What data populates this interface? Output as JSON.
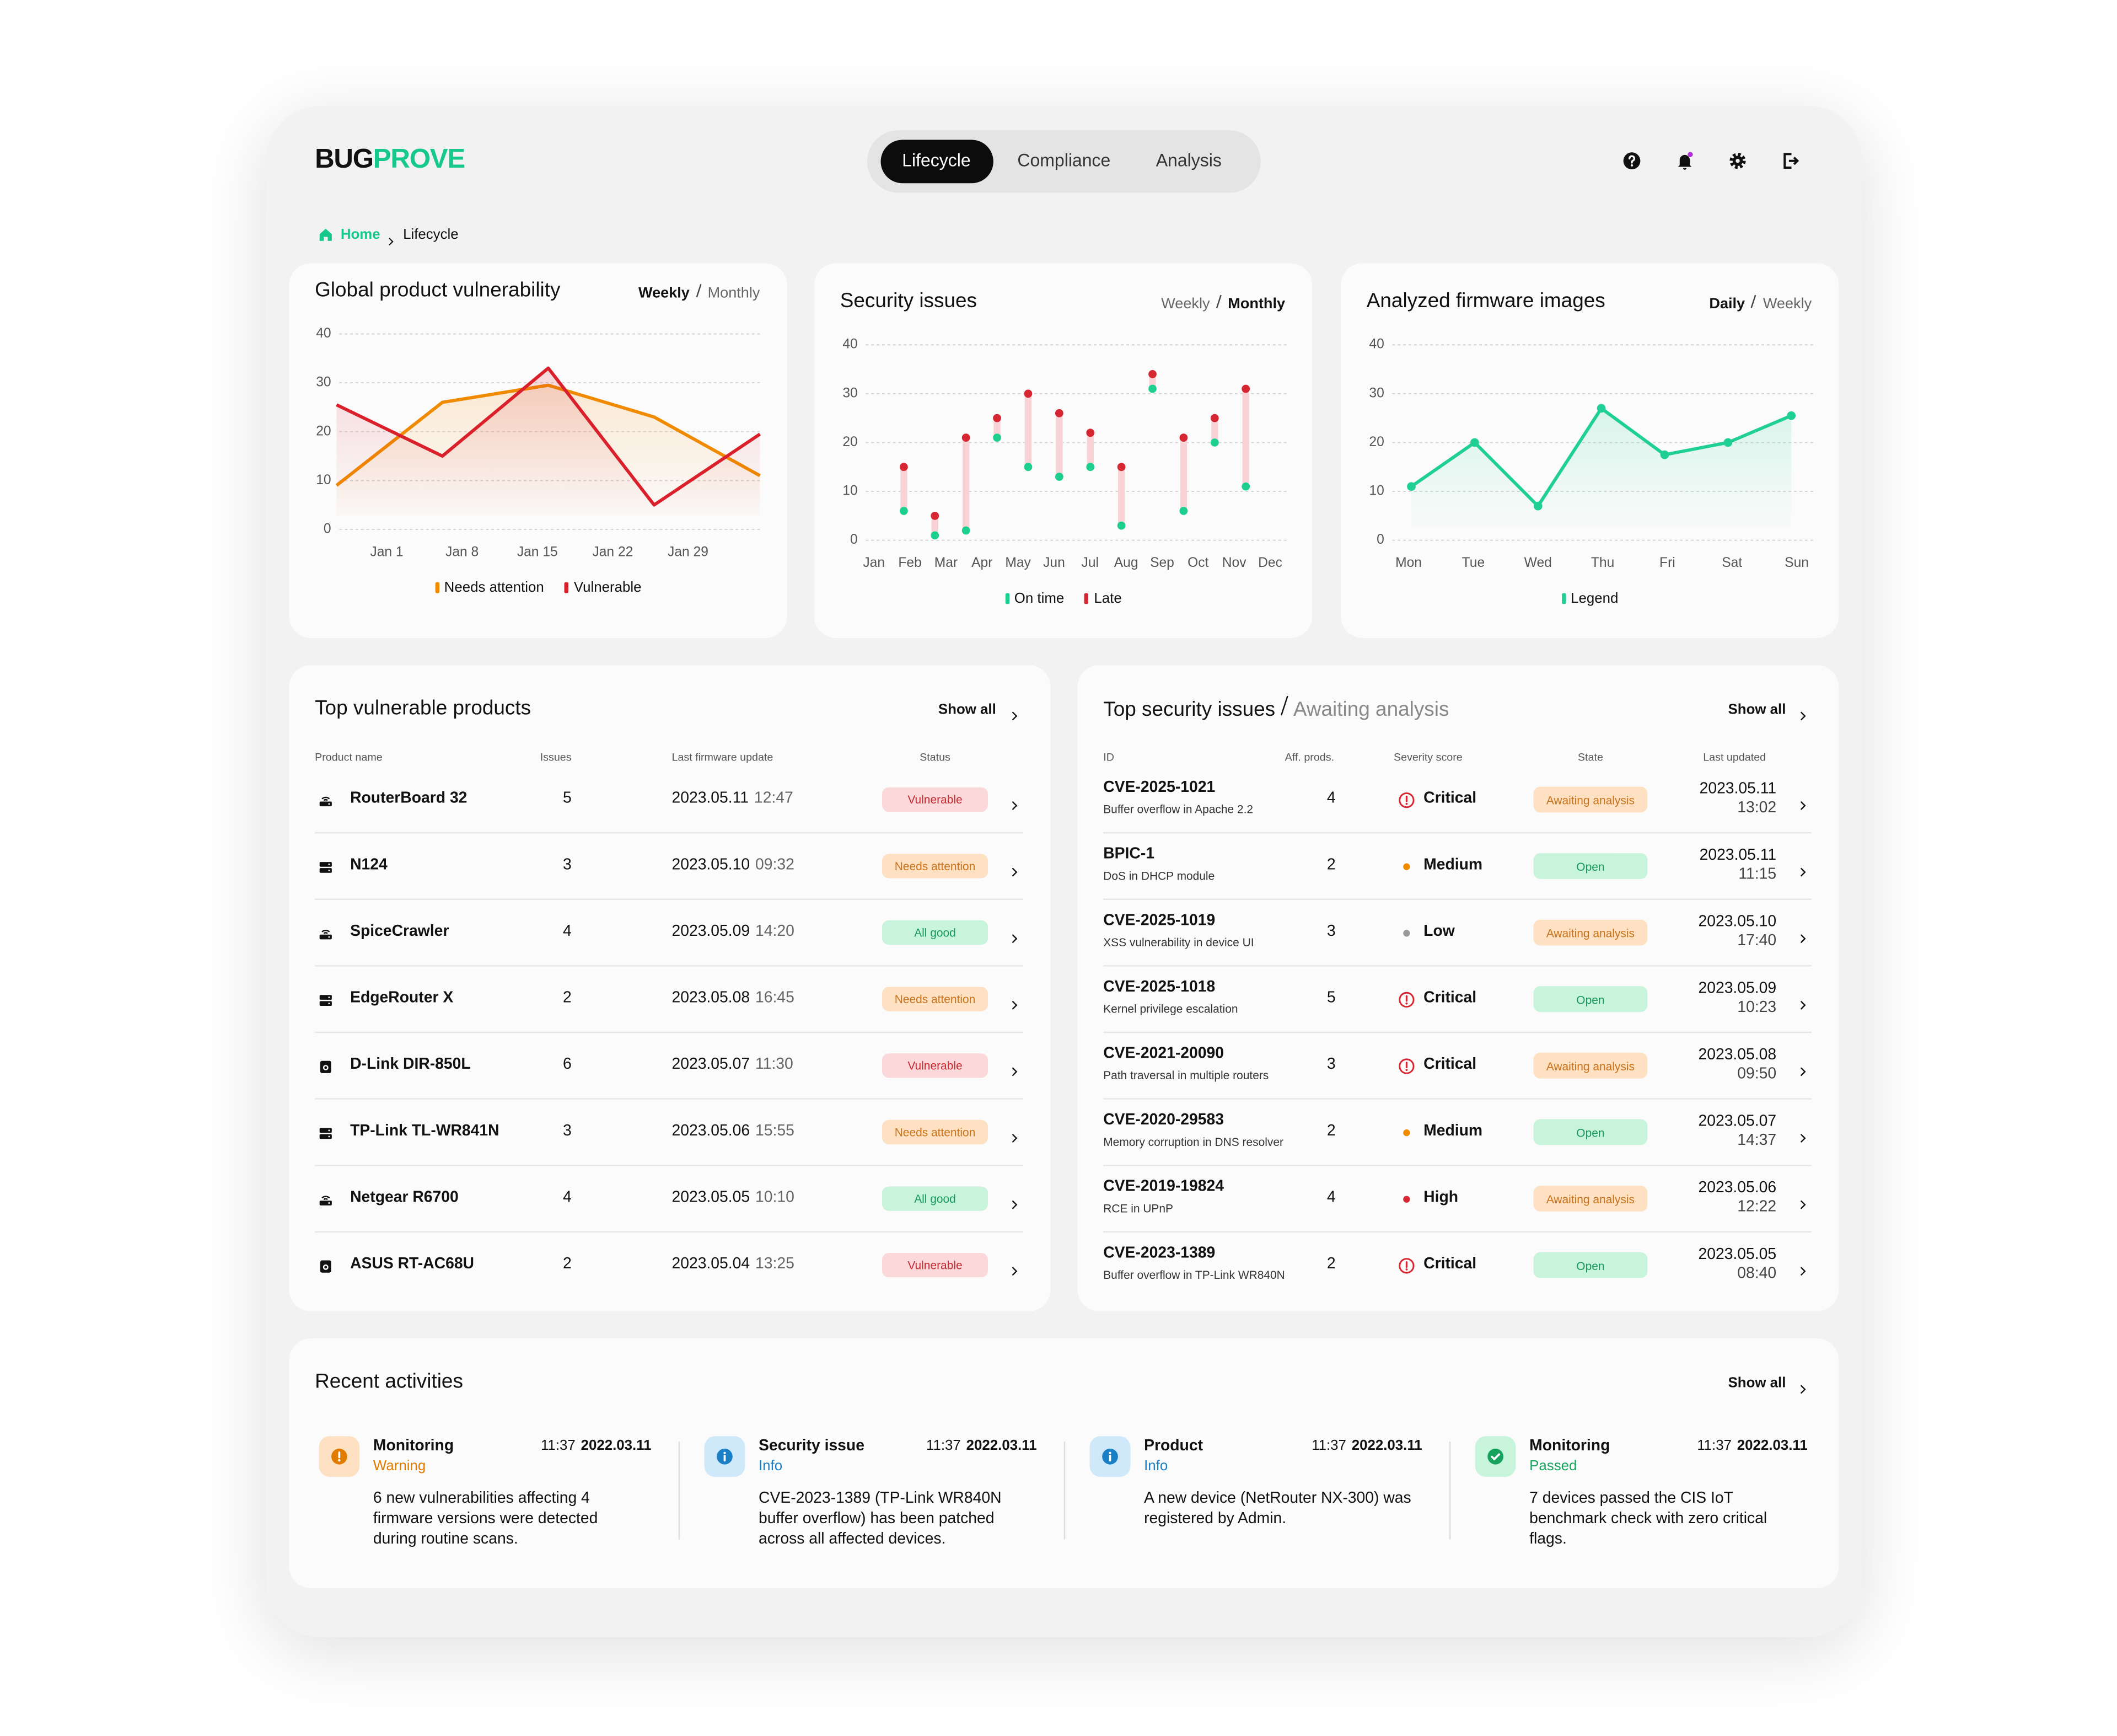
{
  "header": {
    "logo": [
      "BUG",
      "PROVE"
    ],
    "tabs": [
      "Lifecycle",
      "Compliance",
      "Analysis"
    ],
    "active_tab": 0,
    "breadcrumb": [
      "Home",
      "Lifecycle"
    ]
  },
  "chart_data": [
    {
      "type": "line",
      "title": "Global product vulnerability",
      "toggle": [
        "Weekly",
        "Monthly"
      ],
      "toggle_active": 0,
      "categories": [
        "Jan 1",
        "Jan 8",
        "Jan 15",
        "Jan 22",
        "Jan 29"
      ],
      "series": [
        {
          "name": "Needs attention",
          "color": "#f08a00",
          "values": [
            9,
            26,
            29.5,
            23,
            11
          ]
        },
        {
          "name": "Vulnerable",
          "color": "#d9202b",
          "values": [
            25.5,
            15,
            33,
            5,
            19.5
          ]
        }
      ],
      "ylim": [
        0,
        40
      ],
      "yticks": [
        0,
        10,
        20,
        30,
        40
      ],
      "grid": true,
      "markers": false
    },
    {
      "type": "dumbbell",
      "title": "Security issues",
      "toggle": [
        "Weekly",
        "Monthly"
      ],
      "toggle_active": 1,
      "categories": [
        "Jan",
        "Feb",
        "Mar",
        "Apr",
        "May",
        "Jun",
        "Jul",
        "Aug",
        "Sep",
        "Oct",
        "Nov",
        "Dec"
      ],
      "series": [
        {
          "name": "On time",
          "color": "#1ccf8f",
          "values": [
            6,
            1,
            2,
            21,
            15,
            13,
            15,
            3,
            31,
            6,
            20,
            11
          ]
        },
        {
          "name": "Late",
          "color": "#d62631",
          "values": [
            15,
            5,
            21,
            25,
            30,
            26,
            22,
            15,
            34,
            21,
            25,
            31
          ]
        }
      ],
      "range_color": "#f8d2d4",
      "ylim": [
        0,
        40
      ],
      "yticks": [
        0,
        10,
        20,
        30,
        40
      ],
      "grid": true
    },
    {
      "type": "line",
      "title": "Analyzed firmware images",
      "toggle": [
        "Daily",
        "Weekly"
      ],
      "toggle_active": 0,
      "categories": [
        "Mon",
        "Tue",
        "Wed",
        "Thu",
        "Fri",
        "Sat",
        "Sun"
      ],
      "series": [
        {
          "name": "Legend",
          "color": "#1fcf95",
          "values": [
            11,
            20,
            7,
            27,
            17.5,
            20,
            25.5
          ]
        }
      ],
      "ylim": [
        0,
        40
      ],
      "yticks": [
        0,
        10,
        20,
        30,
        40
      ],
      "grid": true,
      "markers": true
    }
  ],
  "tones": {
    "red": {
      "bg": "#fbd9da",
      "fg": "#c62830"
    },
    "orange": {
      "bg": "#fde1c2",
      "fg": "#c9721a"
    },
    "green": {
      "bg": "#c8f4dc",
      "fg": "#17975a"
    }
  },
  "products": {
    "title": "Top vulnerable products",
    "show_all": "Show all",
    "columns": [
      "Product name",
      "Issues",
      "Last firmware update",
      "Status"
    ],
    "rows": [
      {
        "icon": "router",
        "name": "RouterBoard 32",
        "issues": 5,
        "date": "2023.05.11",
        "time": "12:47",
        "status": "Vulnerable",
        "tone": "red"
      },
      {
        "icon": "server",
        "name": "N124",
        "issues": 3,
        "date": "2023.05.10",
        "time": "09:32",
        "status": "Needs attention",
        "tone": "orange"
      },
      {
        "icon": "router",
        "name": "SpiceCrawler",
        "issues": 4,
        "date": "2023.05.09",
        "time": "14:20",
        "status": "All good",
        "tone": "green"
      },
      {
        "icon": "server",
        "name": "EdgeRouter X",
        "issues": 2,
        "date": "2023.05.08",
        "time": "16:45",
        "status": "Needs attention",
        "tone": "orange"
      },
      {
        "icon": "device",
        "name": "D-Link DIR-850L",
        "issues": 6,
        "date": "2023.05.07",
        "time": "11:30",
        "status": "Vulnerable",
        "tone": "red"
      },
      {
        "icon": "server",
        "name": "TP-Link TL-WR841N",
        "issues": 3,
        "date": "2023.05.06",
        "time": "15:55",
        "status": "Needs attention",
        "tone": "orange"
      },
      {
        "icon": "router",
        "name": "Netgear R6700",
        "issues": 4,
        "date": "2023.05.05",
        "time": "10:10",
        "status": "All good",
        "tone": "green"
      },
      {
        "icon": "device",
        "name": "ASUS RT-AC68U",
        "issues": 2,
        "date": "2023.05.04",
        "time": "13:25",
        "status": "Vulnerable",
        "tone": "red"
      }
    ]
  },
  "issues": {
    "title": "Top security issues",
    "subtitle": "Awaiting analysis",
    "show_all": "Show all",
    "columns": [
      "ID",
      "Aff. prods.",
      "Severity score",
      "State",
      "Last updated"
    ],
    "rows": [
      {
        "id": "CVE-2025-1021",
        "desc": "Buffer overflow in Apache 2.2",
        "affected": 4,
        "severity": "Critical",
        "severity_icon": "alert",
        "severity_color": "#d62631",
        "state": "Awaiting analysis",
        "tone": "orange",
        "date": "2023.05.11",
        "time": "13:02"
      },
      {
        "id": "BPIC-1",
        "desc": "DoS in DHCP module",
        "affected": 2,
        "severity": "Medium",
        "severity_icon": "dot",
        "severity_color": "#f08a00",
        "state": "Open",
        "tone": "green",
        "date": "2023.05.11",
        "time": "11:15"
      },
      {
        "id": "CVE-2025-1019",
        "desc": "XSS vulnerability in device UI",
        "affected": 3,
        "severity": "Low",
        "severity_icon": "dot",
        "severity_color": "#9a9a9a",
        "state": "Awaiting analysis",
        "tone": "orange",
        "date": "2023.05.10",
        "time": "17:40"
      },
      {
        "id": "CVE-2025-1018",
        "desc": "Kernel privilege escalation",
        "affected": 5,
        "severity": "Critical",
        "severity_icon": "alert",
        "severity_color": "#d62631",
        "state": "Open",
        "tone": "green",
        "date": "2023.05.09",
        "time": "10:23"
      },
      {
        "id": "CVE-2021-20090",
        "desc": "Path traversal in multiple routers",
        "affected": 3,
        "severity": "Critical",
        "severity_icon": "alert",
        "severity_color": "#d62631",
        "state": "Awaiting analysis",
        "tone": "orange",
        "date": "2023.05.08",
        "time": "09:50"
      },
      {
        "id": "CVE-2020-29583",
        "desc": "Memory corruption in DNS resolver",
        "affected": 2,
        "severity": "Medium",
        "severity_icon": "dot",
        "severity_color": "#f08a00",
        "state": "Open",
        "tone": "green",
        "date": "2023.05.07",
        "time": "14:37"
      },
      {
        "id": "CVE-2019-19824",
        "desc": "RCE in UPnP",
        "affected": 4,
        "severity": "High",
        "severity_icon": "dot",
        "severity_color": "#d62631",
        "state": "Awaiting analysis",
        "tone": "orange",
        "date": "2023.05.06",
        "time": "12:22"
      },
      {
        "id": "CVE-2023-1389",
        "desc": "Buffer overflow in TP-Link WR840N",
        "affected": 2,
        "severity": "Critical",
        "severity_icon": "alert",
        "severity_color": "#d62631",
        "state": "Open",
        "tone": "green",
        "date": "2023.05.05",
        "time": "08:40"
      }
    ]
  },
  "activities": {
    "title": "Recent activities",
    "show_all": "Show all",
    "items": [
      {
        "icon": "warning",
        "color": "#e07b00",
        "bg": "#fde1c2",
        "category": "Monitoring",
        "level": "Warning",
        "time": "11:37",
        "date": "2022.03.11",
        "text": "6 new vulnerabilities affecting 4 firmware versions were detected during routine scans."
      },
      {
        "icon": "info",
        "color": "#1a7fc4",
        "bg": "#cfe9fb",
        "category": "Security issue",
        "level": "Info",
        "time": "11:37",
        "date": "2022.03.11",
        "text": "CVE-2023-1389 (TP-Link WR840N buffer overflow) has been patched across all affected devices."
      },
      {
        "icon": "info",
        "color": "#1a7fc4",
        "bg": "#cfe9fb",
        "category": "Product",
        "level": "Info",
        "time": "11:37",
        "date": "2022.03.11",
        "text": "A new device (NetRouter NX-300) was registered by Admin."
      },
      {
        "icon": "check",
        "color": "#17a35e",
        "bg": "#c8f4dc",
        "category": "Monitoring",
        "level": "Passed",
        "time": "11:37",
        "date": "2022.03.11",
        "text": "7 devices passed the CIS IoT benchmark check with zero critical flags."
      }
    ]
  }
}
